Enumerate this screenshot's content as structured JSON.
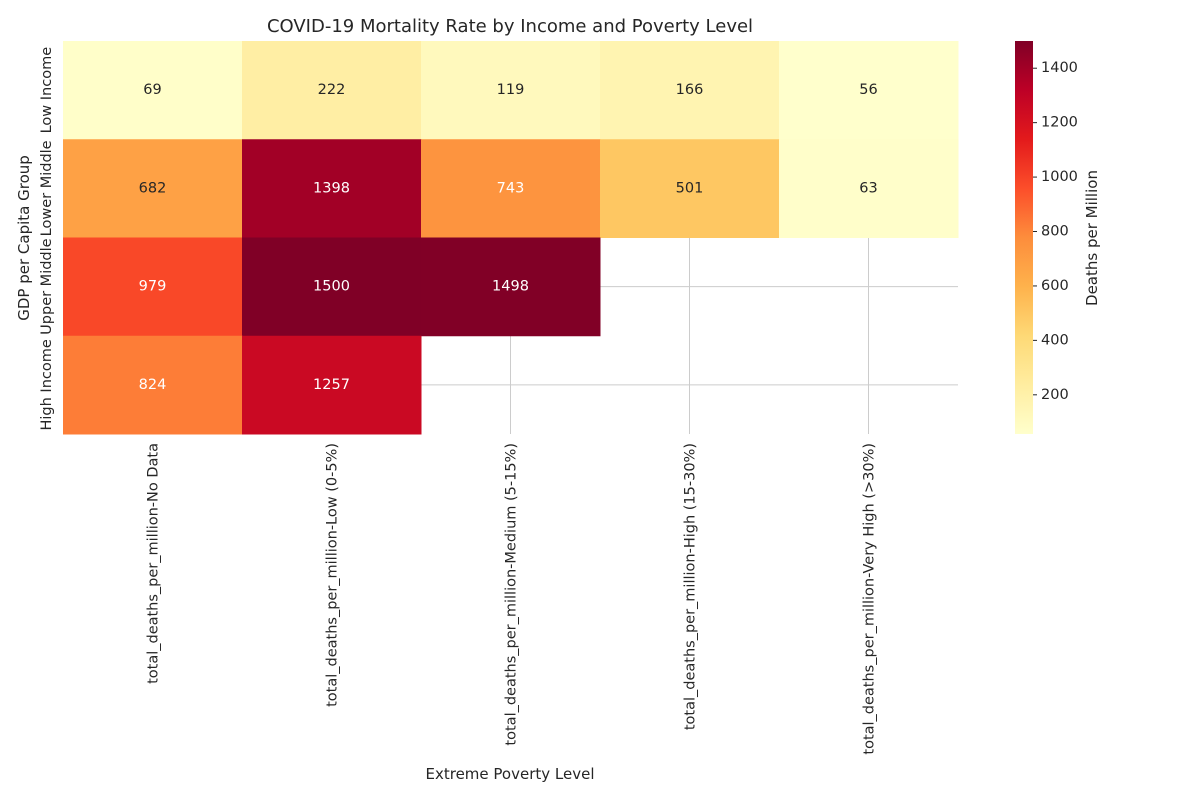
{
  "chart_data": {
    "type": "heatmap",
    "title": "COVID-19 Mortality Rate by Income and Poverty Level",
    "xlabel": "Extreme Poverty Level",
    "ylabel": "GDP per Capita Group",
    "x_categories": [
      "total_deaths_per_million-No Data",
      "total_deaths_per_million-Low (0-5%)",
      "total_deaths_per_million-Medium (5-15%)",
      "total_deaths_per_million-High (15-30%)",
      "total_deaths_per_million-Very High (>30%)"
    ],
    "y_categories": [
      "Low Income",
      "Lower Middle",
      "Upper Middle",
      "High Income"
    ],
    "values": [
      [
        69,
        222,
        119,
        166,
        56
      ],
      [
        682,
        1398,
        743,
        501,
        63
      ],
      [
        979,
        1500,
        1498,
        null,
        null
      ],
      [
        824,
        1257,
        null,
        null,
        null
      ]
    ],
    "colorbar": {
      "label": "Deaths per Million",
      "range": [
        56,
        1500
      ],
      "ticks": [
        200,
        400,
        600,
        800,
        1000,
        1200,
        1400
      ],
      "colormap": "YlOrRd"
    },
    "grid": true,
    "cell_text_dark": "#262626",
    "cell_text_light": "#ffffff"
  }
}
